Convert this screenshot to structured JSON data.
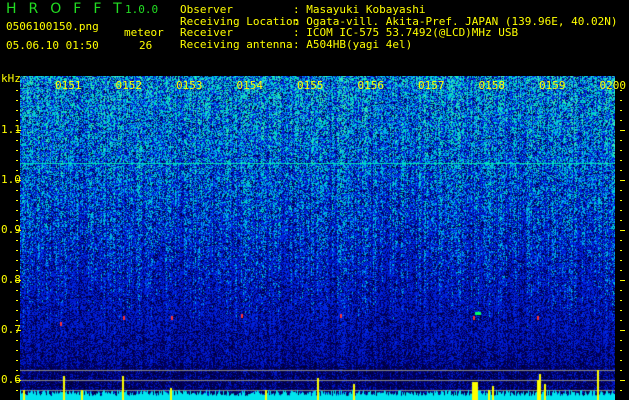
{
  "header": {
    "app_name": "HROFFT",
    "version": "1.0.0",
    "filename": "0506100150.png",
    "datetime": "05.06.10 01:50",
    "meteor_label": "meteor",
    "meteor_count": "26"
  },
  "info": [
    {
      "label": "Observer",
      "value": ": Masayuki Kobayashi"
    },
    {
      "label": "Receiving Location",
      "value": ": Ogata-vill. Akita-Pref. JAPAN (139.96E, 40.02N)"
    },
    {
      "label": "Receiver",
      "value": ": ICOM IC-575 53.7492(@LCD)MHz USB"
    },
    {
      "label": "Receiving antenna",
      "value": ": A504HB(yagi 4el)"
    }
  ],
  "spectrogram": {
    "y_unit": "kHz",
    "y_ticks": [
      "1.1",
      "1.0",
      "0.9",
      "0.8",
      "0.7",
      "0.6"
    ],
    "time_labels": [
      "0151",
      "0152",
      "0153",
      "0154",
      "0155",
      "0156",
      "0157",
      "0158",
      "0159",
      "0200"
    ],
    "colors": {
      "background": "#000000",
      "text": "#ffff00",
      "noise_low": "#0000aa",
      "noise_high": "#00ffcc",
      "histogram": "#00e5ee",
      "meteor_spike": "#ffff00"
    }
  }
}
